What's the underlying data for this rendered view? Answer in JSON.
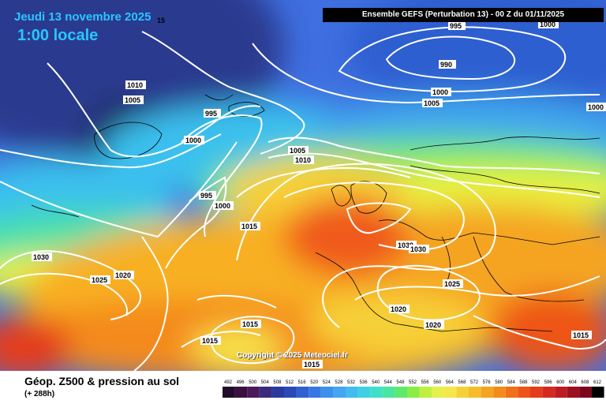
{
  "header": {
    "date_label": "Jeudi 13 novembre 2025",
    "date_suffix": "15",
    "time_label": "1:00 locale",
    "run_info": "Ensemble GEFS  (Perturbation 13)  -  00 Z du 01/11/2025"
  },
  "footer": {
    "title": "Géop. Z500 & pression au sol",
    "lead_time": "(+ 288h)"
  },
  "copyright": "Copyright © 2025 Meteociel.fr",
  "colors": {
    "lowest": "#1e0a2e",
    "deep_low": "#2a3a8f",
    "low": "#3f6fe0",
    "mid_low": "#3ac0ee",
    "mid": "#48e0a8",
    "mid_high": "#e8f040",
    "high": "#f8b020",
    "very_high": "#f05a1a",
    "highest": "#c4281e",
    "isobar": "#ffffff"
  },
  "isobar_labels": [
    "995",
    "1000",
    "990",
    "1000",
    "1005",
    "1000",
    "1010",
    "1005",
    "995",
    "1000",
    "1005",
    "1010",
    "995",
    "1000",
    "1015",
    "1030",
    "1025",
    "1020",
    "1030",
    "1030",
    "1025",
    "1020",
    "1020",
    "1015",
    "1015",
    "1015",
    "1015"
  ],
  "color_scale": {
    "ticks": [
      "492",
      "496",
      "500",
      "504",
      "508",
      "512",
      "516",
      "520",
      "524",
      "528",
      "532",
      "536",
      "540",
      "544",
      "548",
      "552",
      "556",
      "560",
      "564",
      "568",
      "572",
      "576",
      "580",
      "584",
      "588",
      "592",
      "596",
      "600",
      "604",
      "608",
      "612"
    ],
    "colors": [
      "#220c2c",
      "#3a1040",
      "#4a1a5a",
      "#3a2a80",
      "#2c3a9c",
      "#2a4ab8",
      "#2f5fd0",
      "#3577e6",
      "#3f8fee",
      "#44a6f2",
      "#40bcef",
      "#3fd0e6",
      "#3ee0c6",
      "#48e6a0",
      "#5ee86e",
      "#8aec44",
      "#bff040",
      "#e6f04a",
      "#f5e64c",
      "#f6d038",
      "#f6bc2a",
      "#f5a420",
      "#f48a1a",
      "#f26e18",
      "#ee5418",
      "#e43c1c",
      "#d42a20",
      "#bc1c22",
      "#9c1020",
      "#7a081c",
      "#000000"
    ]
  }
}
